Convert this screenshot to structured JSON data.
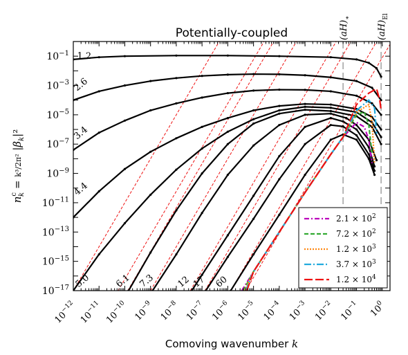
{
  "chart_data": {
    "type": "line",
    "title": "Potentially-coupled",
    "xlabel": "Comoving wavenumber k",
    "ylabel": "n_k^c = k^3/(2π^2) |β_k|^2",
    "xscale": "log",
    "yscale": "log",
    "xlim": [
      1e-12,
      2.0
    ],
    "ylim": [
      1e-17,
      1.0
    ],
    "x_ticks": [
      "10^-12",
      "10^-11",
      "10^-10",
      "10^-9",
      "10^-8",
      "10^-7",
      "10^-6",
      "10^-5",
      "10^-4",
      "10^-3",
      "10^-2",
      "10^-1",
      "10^0"
    ],
    "y_ticks": [
      "10^-17",
      "10^-15",
      "10^-13",
      "10^-11",
      "10^-9",
      "10^-7",
      "10^-5",
      "10^-3",
      "10^-1"
    ],
    "vlines": [
      {
        "label": "(aH)_*",
        "x": 0.03
      },
      {
        "label": "(aH)_El",
        "x": 0.9
      }
    ],
    "black_curves": [
      {
        "label": "1.2",
        "points": [
          [
            1e-12,
            0.06
          ],
          [
            1e-11,
            0.085
          ],
          [
            1e-10,
            0.1
          ],
          [
            1e-08,
            0.11
          ],
          [
            1e-06,
            0.11
          ],
          [
            0.0001,
            0.1
          ],
          [
            0.01,
            0.085
          ],
          [
            0.1,
            0.06
          ],
          [
            0.3,
            0.035
          ],
          [
            0.6,
            0.015
          ],
          [
            0.9,
            0.004
          ]
        ]
      },
      {
        "label": "2.6",
        "points": [
          [
            1e-12,
            0.0001
          ],
          [
            1e-11,
            0.0004
          ],
          [
            1e-10,
            0.001
          ],
          [
            1e-09,
            0.002
          ],
          [
            1e-08,
            0.0032
          ],
          [
            1e-07,
            0.0045
          ],
          [
            1e-06,
            0.0055
          ],
          [
            1e-05,
            0.006
          ],
          [
            0.0001,
            0.0058
          ],
          [
            0.001,
            0.005
          ],
          [
            0.01,
            0.0036
          ],
          [
            0.1,
            0.002
          ],
          [
            0.4,
            0.0007
          ],
          [
            0.9,
            0.0001
          ]
        ]
      },
      {
        "label": "3.4",
        "points": [
          [
            1e-12,
            4e-08
          ],
          [
            1e-11,
            6e-07
          ],
          [
            1e-10,
            4e-06
          ],
          [
            1e-09,
            2e-05
          ],
          [
            1e-08,
            6e-05
          ],
          [
            1e-07,
            0.00015
          ],
          [
            1e-06,
            0.0003
          ],
          [
            1e-05,
            0.00045
          ],
          [
            0.0001,
            0.00052
          ],
          [
            0.001,
            0.0005
          ],
          [
            0.01,
            0.0004
          ],
          [
            0.1,
            0.0002
          ],
          [
            0.4,
            6e-05
          ],
          [
            0.9,
            1e-05
          ]
        ]
      },
      {
        "label": "4.4",
        "points": [
          [
            1e-12,
            1e-12
          ],
          [
            1e-11,
            6e-11
          ],
          [
            1e-10,
            2e-09
          ],
          [
            1e-09,
            3e-08
          ],
          [
            1e-08,
            2.5e-07
          ],
          [
            1e-07,
            1.5e-06
          ],
          [
            1e-06,
            6e-06
          ],
          [
            1e-05,
            2e-05
          ],
          [
            0.0001,
            4e-05
          ],
          [
            0.001,
            5.5e-05
          ],
          [
            0.01,
            5e-05
          ],
          [
            0.1,
            2.5e-05
          ],
          [
            0.4,
            7e-06
          ],
          [
            0.9,
            1e-06
          ]
        ]
      },
      {
        "label": "5.0",
        "points": [
          [
            1e-12,
            1e-17
          ],
          [
            1e-11,
            3e-15
          ],
          [
            1e-10,
            4e-13
          ],
          [
            1e-09,
            3.5e-11
          ],
          [
            1e-08,
            1.8e-09
          ],
          [
            1e-07,
            5e-08
          ],
          [
            1e-06,
            7e-07
          ],
          [
            1e-05,
            5e-06
          ],
          [
            0.0001,
            2e-05
          ],
          [
            0.001,
            3.5e-05
          ],
          [
            0.01,
            3e-05
          ],
          [
            0.1,
            1.5e-05
          ],
          [
            0.4,
            3e-06
          ],
          [
            0.9,
            3e-07
          ]
        ]
      },
      {
        "label": "6.1",
        "points": [
          [
            1.4e-10,
            1e-17
          ],
          [
            1e-09,
            4e-15
          ],
          [
            1e-08,
            3e-12
          ],
          [
            1e-07,
            1e-09
          ],
          [
            1e-06,
            1e-07
          ],
          [
            1e-05,
            2.5e-06
          ],
          [
            0.0001,
            1.2e-05
          ],
          [
            0.001,
            2.2e-05
          ],
          [
            0.01,
            1.8e-05
          ],
          [
            0.1,
            8e-06
          ],
          [
            0.4,
            1.5e-06
          ],
          [
            0.9,
            1e-07
          ]
        ]
      },
      {
        "label": "7.3",
        "points": [
          [
            1.2e-09,
            1e-17
          ],
          [
            1e-08,
            3e-15
          ],
          [
            1e-07,
            2e-12
          ],
          [
            1e-06,
            8e-10
          ],
          [
            1e-05,
            8e-08
          ],
          [
            0.0001,
            2e-06
          ],
          [
            0.001,
            1e-05
          ],
          [
            0.01,
            1.2e-05
          ],
          [
            0.04,
            6e-06
          ],
          [
            0.1,
            2e-06
          ],
          [
            0.3,
            2e-07
          ],
          [
            0.6,
            8e-09
          ]
        ]
      },
      {
        "label": "12",
        "points": [
          [
            4e-08,
            1e-17
          ],
          [
            1e-07,
            1.2e-16
          ],
          [
            1e-06,
            6e-14
          ],
          [
            1e-05,
            3e-11
          ],
          [
            0.0001,
            1.5e-08
          ],
          [
            0.001,
            1.5e-06
          ],
          [
            0.01,
            6e-06
          ],
          [
            0.03,
            3.5e-06
          ],
          [
            0.1,
            1e-06
          ],
          [
            0.3,
            6e-08
          ],
          [
            0.5,
            3e-09
          ]
        ]
      },
      {
        "label": "17",
        "points": [
          [
            1.4e-07,
            1e-17
          ],
          [
            1e-06,
            2e-15
          ],
          [
            1e-05,
            8e-13
          ],
          [
            0.0001,
            4e-10
          ],
          [
            0.001,
            1e-07
          ],
          [
            0.01,
            2e-06
          ],
          [
            0.03,
            1.6e-06
          ],
          [
            0.1,
            4e-07
          ],
          [
            0.3,
            2e-08
          ],
          [
            0.5,
            1.5e-09
          ]
        ]
      },
      {
        "label": "60",
        "points": [
          [
            1.3e-06,
            1e-17
          ],
          [
            1e-05,
            3e-15
          ],
          [
            0.0001,
            1.5e-12
          ],
          [
            0.001,
            8e-10
          ],
          [
            0.01,
            2e-07
          ],
          [
            0.03,
            4.5e-07
          ],
          [
            0.1,
            2e-07
          ],
          [
            0.3,
            1e-08
          ],
          [
            0.5,
            8e-10
          ]
        ]
      }
    ],
    "red_dashed_lines": {
      "color": "#ee1111",
      "slope_decades_per_decade": 3,
      "x_at_y_1e-17": [
        1e-12,
        5.5e-11,
        1.3e-10,
        1e-09,
        3.5e-08,
        1.3e-07,
        1.3e-06,
        5e-06
      ]
    },
    "series": [
      {
        "name": "2.1 × 10^2",
        "color": "#bb00bb",
        "dash": "dashdot",
        "points": [
          [
            3.5e-06,
            1e-17
          ],
          [
            1e-05,
            2e-16
          ],
          [
            0.0001,
            1e-13
          ],
          [
            0.001,
            5e-11
          ],
          [
            0.01,
            2e-08
          ],
          [
            0.03,
            3e-07
          ],
          [
            0.1,
            3e-06
          ],
          [
            0.2,
            1.5e-06
          ],
          [
            0.3,
            2e-07
          ],
          [
            0.4,
            5e-09
          ]
        ]
      },
      {
        "name": "7.2 × 10^2",
        "color": "#33aa33",
        "dash": "dashed",
        "points": [
          [
            4e-06,
            1e-17
          ],
          [
            1e-05,
            2e-16
          ],
          [
            0.0001,
            1e-13
          ],
          [
            0.001,
            5e-11
          ],
          [
            0.01,
            2e-08
          ],
          [
            0.03,
            3e-07
          ],
          [
            0.1,
            1e-05
          ],
          [
            0.2,
            1.6e-05
          ],
          [
            0.3,
            2e-06
          ],
          [
            0.4,
            2e-08
          ]
        ]
      },
      {
        "name": "1.2 × 10^3",
        "color": "#ff8811",
        "dash": "dotted",
        "points": [
          [
            4.5e-06,
            1e-17
          ],
          [
            1e-05,
            2e-16
          ],
          [
            0.0001,
            1e-13
          ],
          [
            0.001,
            5e-11
          ],
          [
            0.01,
            2e-08
          ],
          [
            0.03,
            3e-07
          ],
          [
            0.1,
            1.5e-05
          ],
          [
            0.3,
            5e-05
          ],
          [
            0.4,
            3e-06
          ],
          [
            0.5,
            5e-09
          ]
        ]
      },
      {
        "name": "3.7 × 10^3",
        "color": "#22aadd",
        "dash": "longdashdot",
        "points": [
          [
            5e-06,
            1e-17
          ],
          [
            1e-05,
            2e-16
          ],
          [
            0.0001,
            1e-13
          ],
          [
            0.001,
            5e-11
          ],
          [
            0.01,
            2e-08
          ],
          [
            0.03,
            3e-07
          ],
          [
            0.1,
            2e-05
          ],
          [
            0.3,
            0.0001
          ],
          [
            0.5,
            3e-05
          ],
          [
            0.6,
            5e-07
          ]
        ]
      },
      {
        "name": "1.2 × 10^4",
        "color": "#ee1111",
        "dash": "longdash",
        "points": [
          [
            5.5e-06,
            1e-17
          ],
          [
            1e-05,
            2e-16
          ],
          [
            0.0001,
            1e-13
          ],
          [
            0.001,
            5e-11
          ],
          [
            0.01,
            2e-08
          ],
          [
            0.03,
            3e-07
          ],
          [
            0.1,
            5e-05
          ],
          [
            0.3,
            0.0003
          ],
          [
            0.6,
            0.0006
          ],
          [
            0.8,
            0.0001
          ],
          [
            0.9,
            2e-05
          ]
        ]
      }
    ],
    "legend_position": "lower-right"
  }
}
